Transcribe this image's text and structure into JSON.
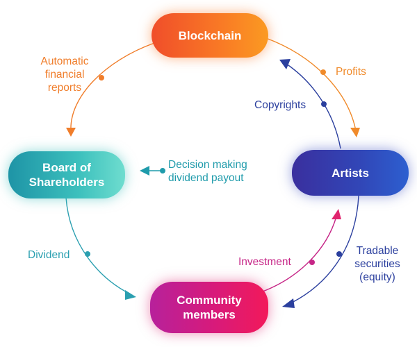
{
  "nodes": {
    "blockchain": {
      "label": "Blockchain"
    },
    "artists": {
      "label": "Artists"
    },
    "board": {
      "lines": [
        "Board of",
        "Shareholders"
      ]
    },
    "community": {
      "lines": [
        "Community",
        "members"
      ]
    }
  },
  "edges": {
    "automatic_reports": {
      "lines": [
        "Automatic",
        "financial",
        "reports"
      ]
    },
    "profits": {
      "label": "Profits"
    },
    "copyrights": {
      "label": "Copyrights"
    },
    "decision": {
      "lines": [
        "Decision making",
        "dividend payout"
      ]
    },
    "dividend": {
      "label": "Dividend"
    },
    "investment": {
      "label": "Investment"
    },
    "tradable": {
      "lines": [
        "Tradable",
        "securities",
        "(equity)"
      ]
    }
  },
  "colors": {
    "orange": "#f07d2a",
    "navy": "#2b3f9e",
    "teal": "#2a9fb0",
    "magenta": "#c62687"
  }
}
